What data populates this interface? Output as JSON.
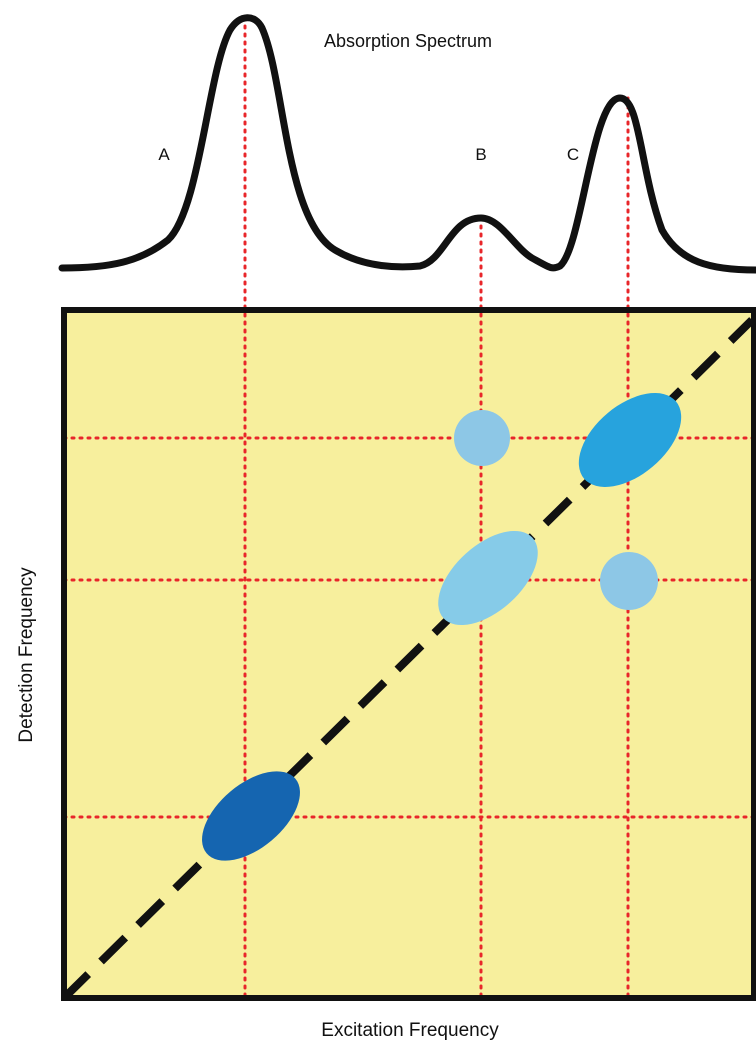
{
  "title": "Absorption Spectrum",
  "peak_labels": {
    "a": "A",
    "b": "B",
    "c": "C"
  },
  "axes": {
    "x_label": "Excitation Frequency",
    "y_label": "Detection Frequency"
  },
  "colors": {
    "plot_background": "#f7ef9d",
    "grid_lines": "#e8262a",
    "diagonal": "#111111",
    "peak_dark": "#1565b0",
    "peak_medium": "#27a3dd",
    "peak_light": "#86cbe8",
    "cross_peak": "#8dc7e6"
  }
}
